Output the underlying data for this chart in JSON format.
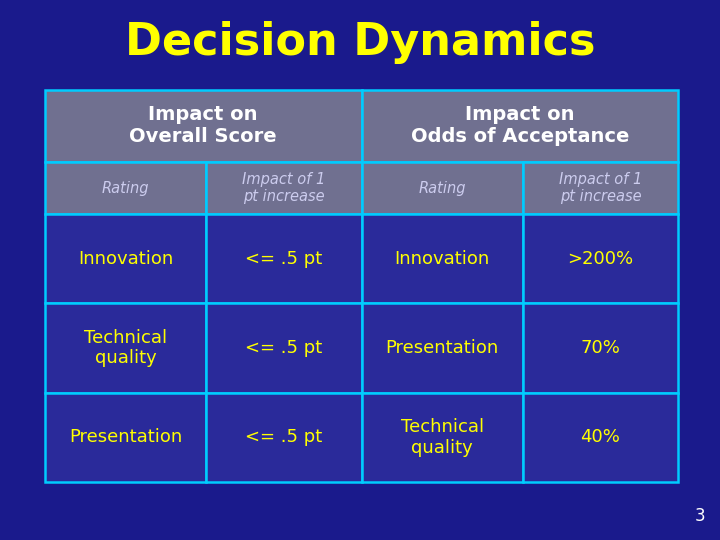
{
  "title": "Decision Dynamics",
  "title_color": "#FFFF00",
  "title_fontsize": 32,
  "bg_color": "#1a1a8c",
  "table_border_color": "#00CCFF",
  "header1_bg": "#707090",
  "cell_bg": "#2a2a9a",
  "header_text_color": "#FFFFFF",
  "cell_text_color": "#FFFF00",
  "subheader_text_color": "#CCCCEE",
  "col_headers": [
    "Impact on\nOverall Score",
    "Impact on\nOdds of Acceptance"
  ],
  "sub_headers": [
    "Rating",
    "Impact of 1\npt increase",
    "Rating",
    "Impact of 1\npt increase"
  ],
  "rows": [
    [
      "Innovation",
      "<= .5 pt",
      "Innovation",
      ">200%"
    ],
    [
      "Technical\nquality",
      "<= .5 pt",
      "Presentation",
      "70%"
    ],
    [
      "Presentation",
      "<= .5 pt",
      "Technical\nquality",
      "40%"
    ]
  ],
  "page_number": "3"
}
